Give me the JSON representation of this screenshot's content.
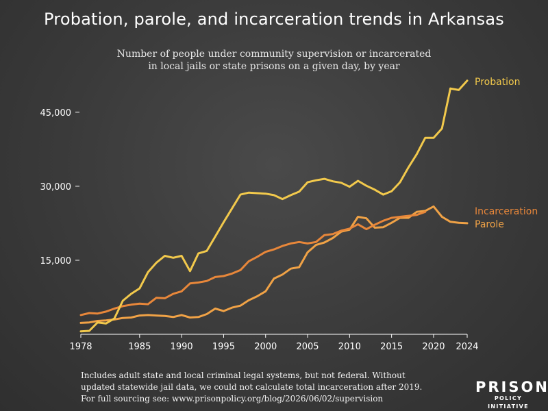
{
  "title": "Probation, parole, and incarceration trends in Arkansas",
  "subtitle_lines": [
    "Number of people under community supervision or incarcerated",
    "in local jails or state prisons on a given day, by year"
  ],
  "footnote_lines": [
    "Includes adult state and local criminal legal systems, but not federal. Without",
    "updated statewide jail data, we could not calculate total incarceration after 2019.",
    "For full sourcing see: www.prisonpolicy.org/blog/2026/06/02/supervision"
  ],
  "logo": {
    "line1": "PRISON",
    "line2": "POLICY INITIATIVE"
  },
  "colors": {
    "Probation": "#f2c94c",
    "Incarceration": "#e8873a",
    "Parole": "#f0a246"
  },
  "chart_data": {
    "type": "line",
    "xlim": [
      1978,
      2024
    ],
    "ylim": [
      0,
      51500
    ],
    "x_ticks": [
      {
        "value": 1978,
        "label": "1978"
      },
      {
        "value": 1985,
        "label": "1985"
      },
      {
        "value": 1990,
        "label": "1990"
      },
      {
        "value": 1995,
        "label": "1995"
      },
      {
        "value": 2000,
        "label": "2000"
      },
      {
        "value": 2005,
        "label": "2005"
      },
      {
        "value": 2010,
        "label": "2010"
      },
      {
        "value": 2015,
        "label": "2015"
      },
      {
        "value": 2020,
        "label": "2020"
      },
      {
        "value": 2024,
        "label": "2024"
      }
    ],
    "y_ticks": [
      {
        "value": 15000,
        "label": "15,000"
      },
      {
        "value": 30000,
        "label": "30,000"
      },
      {
        "value": 45000,
        "label": "45,000"
      }
    ],
    "grid": false,
    "series": [
      {
        "name": "Probation",
        "points": [
          [
            1978,
            600
          ],
          [
            1979,
            700
          ],
          [
            1980,
            2400
          ],
          [
            1981,
            2200
          ],
          [
            1982,
            3200
          ],
          [
            1983,
            6800
          ],
          [
            1984,
            8200
          ],
          [
            1985,
            9300
          ],
          [
            1986,
            12600
          ],
          [
            1987,
            14500
          ],
          [
            1988,
            15900
          ],
          [
            1989,
            15500
          ],
          [
            1990,
            15900
          ],
          [
            1991,
            12800
          ],
          [
            1992,
            16400
          ],
          [
            1993,
            16900
          ],
          [
            1994,
            19800
          ],
          [
            1995,
            22700
          ],
          [
            1996,
            25500
          ],
          [
            1997,
            28300
          ],
          [
            1998,
            28700
          ],
          [
            1999,
            28600
          ],
          [
            2000,
            28500
          ],
          [
            2001,
            28200
          ],
          [
            2002,
            27400
          ],
          [
            2003,
            28200
          ],
          [
            2004,
            28900
          ],
          [
            2005,
            30800
          ],
          [
            2006,
            31200
          ],
          [
            2007,
            31500
          ],
          [
            2008,
            31000
          ],
          [
            2009,
            30700
          ],
          [
            2010,
            29900
          ],
          [
            2011,
            31100
          ],
          [
            2012,
            30100
          ],
          [
            2013,
            29300
          ],
          [
            2014,
            28300
          ],
          [
            2015,
            29000
          ],
          [
            2016,
            30800
          ],
          [
            2017,
            33800
          ],
          [
            2018,
            36500
          ],
          [
            2019,
            39800
          ],
          [
            2020,
            39800
          ],
          [
            2021,
            41700
          ],
          [
            2022,
            49800
          ],
          [
            2023,
            49500
          ],
          [
            2024,
            51400
          ]
        ]
      },
      {
        "name": "Incarceration",
        "points": [
          [
            1978,
            3900
          ],
          [
            1979,
            4300
          ],
          [
            1980,
            4200
          ],
          [
            1981,
            4600
          ],
          [
            1982,
            5200
          ],
          [
            1983,
            5700
          ],
          [
            1984,
            6000
          ],
          [
            1985,
            6200
          ],
          [
            1986,
            6100
          ],
          [
            1987,
            7400
          ],
          [
            1988,
            7300
          ],
          [
            1989,
            8200
          ],
          [
            1990,
            8700
          ],
          [
            1991,
            10300
          ],
          [
            1992,
            10500
          ],
          [
            1993,
            10800
          ],
          [
            1994,
            11600
          ],
          [
            1995,
            11800
          ],
          [
            1996,
            12300
          ],
          [
            1997,
            13000
          ],
          [
            1998,
            14800
          ],
          [
            1999,
            15700
          ],
          [
            2000,
            16700
          ],
          [
            2001,
            17200
          ],
          [
            2002,
            17900
          ],
          [
            2003,
            18400
          ],
          [
            2004,
            18700
          ],
          [
            2005,
            18400
          ],
          [
            2006,
            18700
          ],
          [
            2007,
            20100
          ],
          [
            2008,
            20300
          ],
          [
            2009,
            21000
          ],
          [
            2010,
            21400
          ],
          [
            2011,
            22300
          ],
          [
            2012,
            21300
          ],
          [
            2013,
            22200
          ],
          [
            2014,
            23000
          ],
          [
            2015,
            23600
          ],
          [
            2016,
            23800
          ],
          [
            2017,
            24000
          ],
          [
            2018,
            24200
          ],
          [
            2019,
            24800
          ]
        ]
      },
      {
        "name": "Parole",
        "points": [
          [
            1978,
            2300
          ],
          [
            1979,
            2400
          ],
          [
            1980,
            2700
          ],
          [
            1981,
            2800
          ],
          [
            1982,
            3000
          ],
          [
            1983,
            3300
          ],
          [
            1984,
            3400
          ],
          [
            1985,
            3800
          ],
          [
            1986,
            3900
          ],
          [
            1987,
            3800
          ],
          [
            1988,
            3700
          ],
          [
            1989,
            3500
          ],
          [
            1990,
            3900
          ],
          [
            1991,
            3400
          ],
          [
            1992,
            3500
          ],
          [
            1993,
            4100
          ],
          [
            1994,
            5200
          ],
          [
            1995,
            4700
          ],
          [
            1996,
            5400
          ],
          [
            1997,
            5800
          ],
          [
            1998,
            6900
          ],
          [
            1999,
            7700
          ],
          [
            2000,
            8700
          ],
          [
            2001,
            11300
          ],
          [
            2002,
            12100
          ],
          [
            2003,
            13300
          ],
          [
            2004,
            13600
          ],
          [
            2005,
            16600
          ],
          [
            2006,
            18100
          ],
          [
            2007,
            18600
          ],
          [
            2008,
            19500
          ],
          [
            2009,
            20800
          ],
          [
            2010,
            21200
          ],
          [
            2011,
            23800
          ],
          [
            2012,
            23500
          ],
          [
            2013,
            21600
          ],
          [
            2014,
            21700
          ],
          [
            2015,
            22600
          ],
          [
            2016,
            23600
          ],
          [
            2017,
            23600
          ],
          [
            2018,
            24800
          ],
          [
            2019,
            25000
          ],
          [
            2020,
            25900
          ],
          [
            2021,
            23800
          ],
          [
            2022,
            22800
          ],
          [
            2023,
            22600
          ],
          [
            2024,
            22500
          ]
        ]
      }
    ],
    "line_labels": [
      "Probation",
      "Incarceration",
      "Parole"
    ]
  }
}
